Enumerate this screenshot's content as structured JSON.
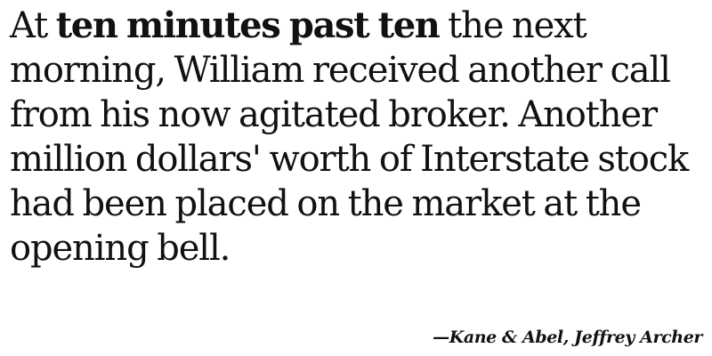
{
  "quote": {
    "lines": [
      {
        "before": "At ",
        "emphasis": "ten minutes past ten",
        "after": " the next"
      },
      {
        "text": "morning, William received another call"
      },
      {
        "text": "from his now agitated broker. Another"
      },
      {
        "text": "million dollars' worth of Interstate stock"
      },
      {
        "text": "had been placed on the market at the"
      },
      {
        "text": "opening bell."
      }
    ]
  },
  "attribution": {
    "text": "—Kane & Abel, Jeffrey Archer"
  }
}
